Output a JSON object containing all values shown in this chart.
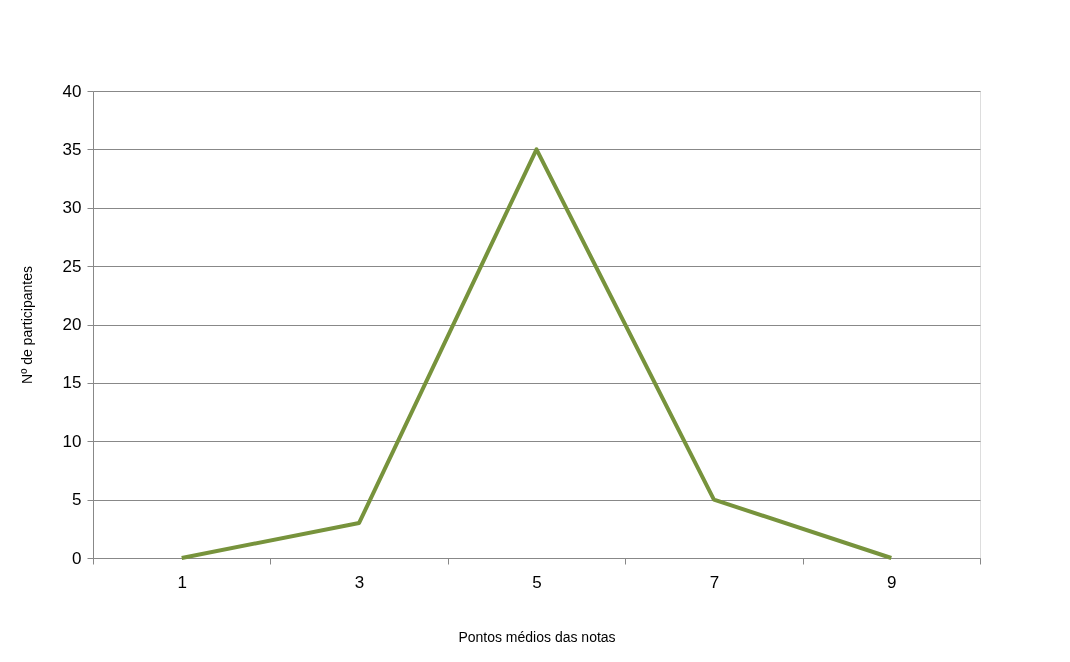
{
  "chart_data": {
    "type": "line",
    "xlabel": "Pontos médios das notas",
    "ylabel": "Nº de participantes",
    "categories": [
      "1",
      "3",
      "5",
      "7",
      "9"
    ],
    "series": [
      {
        "color": "#77933c",
        "values": [
          0,
          3,
          35,
          5,
          0
        ]
      }
    ],
    "ylim": [
      0,
      40
    ],
    "yticks": [
      0,
      5,
      10,
      15,
      20,
      25,
      30,
      35,
      40
    ],
    "grid": "y",
    "marker": "none",
    "line_style": "solid"
  }
}
